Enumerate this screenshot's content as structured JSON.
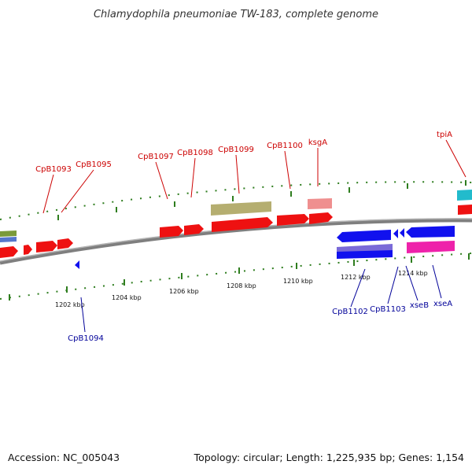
{
  "title": "Chlamydophila pneumoniae TW-183, complete genome",
  "footer": {
    "accession": "Accession: NC_005043",
    "topology": "Topology: circular; Length: 1,225,935 bp; Genes: 1,154"
  },
  "colors": {
    "forward_label": "#cc0000",
    "reverse_label": "#000099",
    "backbone": "#7f7f7f",
    "tick": "#2e7d1e"
  },
  "scale_labels": [
    "1202 kbp",
    "1204 kbp",
    "1206 kbp",
    "1208 kbp",
    "1210 kbp",
    "1212 kbp",
    "1214 kbp"
  ],
  "gene_labels": [
    {
      "text": "CpB1093",
      "strand": "forward"
    },
    {
      "text": "CpB1095",
      "strand": "forward"
    },
    {
      "text": "CpB1097",
      "strand": "forward"
    },
    {
      "text": "CpB1098",
      "strand": "forward"
    },
    {
      "text": "CpB1099",
      "strand": "forward"
    },
    {
      "text": "CpB1100",
      "strand": "forward"
    },
    {
      "text": "ksgA",
      "strand": "forward"
    },
    {
      "text": "tpiA",
      "strand": "forward"
    },
    {
      "text": "CpB1094",
      "strand": "reverse"
    },
    {
      "text": "CpB1102",
      "strand": "reverse"
    },
    {
      "text": "CpB1103",
      "strand": "reverse"
    },
    {
      "text": "xseB",
      "strand": "reverse"
    },
    {
      "text": "xseA",
      "strand": "reverse"
    }
  ]
}
